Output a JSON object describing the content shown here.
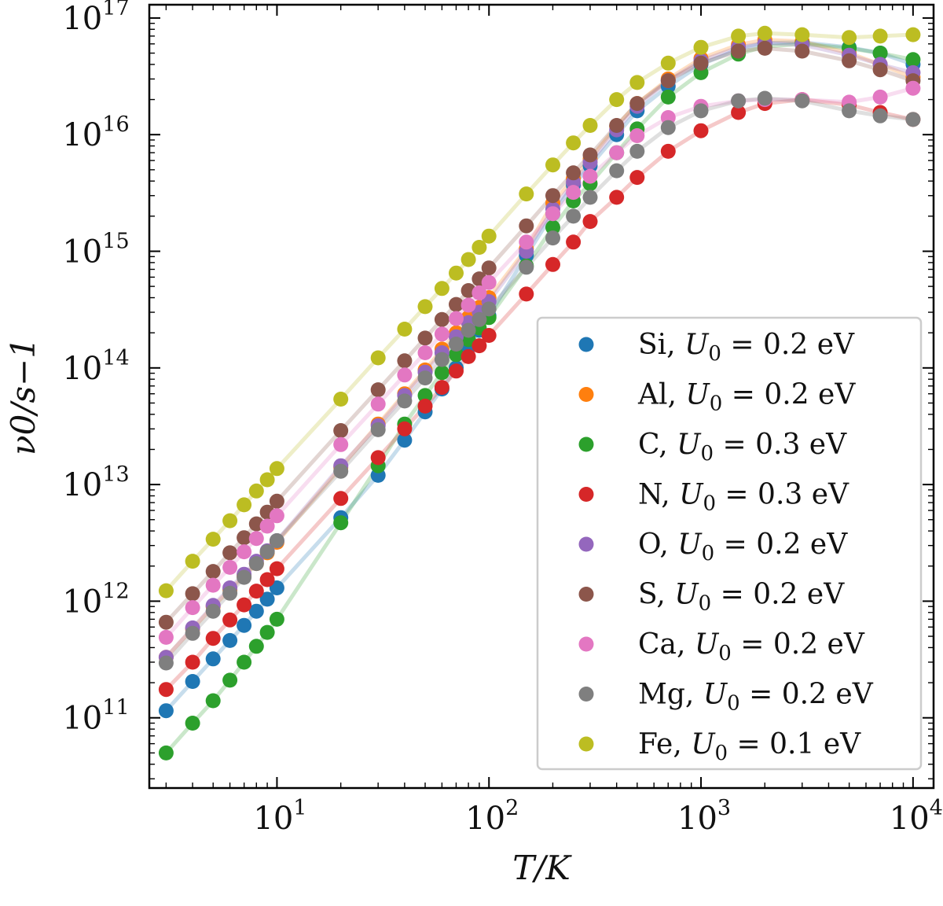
{
  "chart_data": {
    "type": "scatter",
    "title": "",
    "xlabel": "T/K",
    "ylabel": "ν0/s−1",
    "xscale": "log",
    "yscale": "log",
    "xlim": [
      2.5,
      12500
    ],
    "ylim": [
      25000000000.0,
      1.3e+17
    ],
    "grid": false,
    "legend_position": "lower-right",
    "x_ticks": [
      {
        "value": 10,
        "base": "10",
        "exp": "1"
      },
      {
        "value": 100,
        "base": "10",
        "exp": "2"
      },
      {
        "value": 1000,
        "base": "10",
        "exp": "3"
      },
      {
        "value": 10000,
        "base": "10",
        "exp": "4"
      }
    ],
    "y_ticks": [
      {
        "value": 100000000000.0,
        "base": "10",
        "exp": "11"
      },
      {
        "value": 1000000000000.0,
        "base": "10",
        "exp": "12"
      },
      {
        "value": 10000000000000.0,
        "base": "10",
        "exp": "13"
      },
      {
        "value": 100000000000000.0,
        "base": "10",
        "exp": "14"
      },
      {
        "value": 1000000000000000.0,
        "base": "10",
        "exp": "15"
      },
      {
        "value": 1e+16,
        "base": "10",
        "exp": "16"
      },
      {
        "value": 1e+17,
        "base": "10",
        "exp": "17"
      }
    ],
    "series": [
      {
        "name": "Si, U0 = 0.2 eV",
        "element": "Si",
        "u0_text": "0.2 eV",
        "color": "#1f77b4",
        "x": [
          3,
          4,
          5,
          6,
          7,
          8,
          9,
          10,
          20,
          30,
          40,
          50,
          60,
          70,
          80,
          90,
          100,
          150,
          200,
          250,
          300,
          400,
          500,
          700,
          1000,
          1500,
          2000,
          3000,
          5000,
          7000,
          10000
        ],
        "y": [
          115000000000.0,
          205000000000.0,
          320000000000.0,
          460000000000.0,
          620000000000.0,
          820000000000.0,
          1040000000000.0,
          1300000000000.0,
          5200000000000.0,
          12000000000000.0,
          24000000000000.0,
          42000000000000.0,
          66000000000000.0,
          100000000000000.0,
          150000000000000.0,
          210000000000000.0,
          280000000000000.0,
          920000000000000.0,
          2100000000000000.0,
          3700000000000000.0,
          5400000000000000.0,
          1e+16,
          1.6e+16,
          2.6e+16,
          4e+16,
          5.4e+16,
          6.1e+16,
          6.2e+16,
          5.6e+16,
          5e+16,
          4e+16
        ]
      },
      {
        "name": "Al, U0 = 0.2 eV",
        "element": "Al",
        "u0_text": "0.2 eV",
        "color": "#ff7f0e",
        "x": [
          3,
          4,
          5,
          6,
          7,
          8,
          9,
          10,
          20,
          30,
          40,
          50,
          60,
          70,
          80,
          90,
          100,
          150,
          200,
          250,
          300,
          400,
          500,
          700,
          1000,
          1500,
          2000,
          3000,
          5000,
          7000,
          10000
        ],
        "y": [
          330000000000.0,
          580000000000.0,
          900000000000.0,
          1250000000000.0,
          1650000000000.0,
          2100000000000.0,
          2600000000000.0,
          3200000000000.0,
          14000000000000.0,
          33000000000000.0,
          60000000000000.0,
          96000000000000.0,
          145000000000000.0,
          200000000000000.0,
          270000000000000.0,
          330000000000000.0,
          400000000000000.0,
          1050000000000000.0,
          2600000000000000.0,
          4200000000000000.0,
          6200000000000000.0,
          1.18e+16,
          1.85e+16,
          3e+16,
          4.5e+16,
          5.9e+16,
          6.5e+16,
          6.3e+16,
          5e+16,
          4e+16,
          3.1e+16
        ]
      },
      {
        "name": "C, U0 = 0.3 eV",
        "element": "C",
        "u0_text": "0.3 eV",
        "color": "#2ca02c",
        "x": [
          3,
          4,
          5,
          6,
          7,
          8,
          9,
          10,
          20,
          30,
          40,
          50,
          60,
          70,
          80,
          90,
          100,
          150,
          200,
          250,
          300,
          400,
          500,
          700,
          1000,
          1500,
          2000,
          3000,
          5000,
          7000,
          10000
        ],
        "y": [
          50000000000.0,
          90000000000.0,
          140000000000.0,
          210000000000.0,
          300000000000.0,
          410000000000.0,
          540000000000.0,
          700000000000.0,
          4700000000000.0,
          14500000000000.0,
          33000000000000.0,
          58000000000000.0,
          91000000000000.0,
          130000000000000.0,
          175000000000000.0,
          220000000000000.0,
          270000000000000.0,
          750000000000000.0,
          1600000000000000.0,
          2700000000000000.0,
          3800000000000000.0,
          7000000000000000.0,
          1.12e+16,
          2.1e+16,
          3.4e+16,
          4.9e+16,
          5.7e+16,
          6e+16,
          5.5e+16,
          5e+16,
          4.4e+16
        ]
      },
      {
        "name": "N, U0 = 0.3 eV",
        "element": "N",
        "u0_text": "0.3 eV",
        "color": "#d62728",
        "x": [
          3,
          4,
          5,
          6,
          7,
          8,
          9,
          10,
          20,
          30,
          40,
          50,
          60,
          70,
          80,
          90,
          100,
          150,
          200,
          250,
          300,
          400,
          500,
          700,
          1000,
          1500,
          2000,
          3000,
          5000,
          7000,
          10000
        ],
        "y": [
          175000000000.0,
          300000000000.0,
          480000000000.0,
          690000000000.0,
          930000000000.0,
          1220000000000.0,
          1530000000000.0,
          1900000000000.0,
          7600000000000.0,
          17000000000000.0,
          30000000000000.0,
          47000000000000.0,
          68000000000000.0,
          94000000000000.0,
          125000000000000.0,
          155000000000000.0,
          190000000000000.0,
          430000000000000.0,
          770000000000000.0,
          1200000000000000.0,
          1800000000000000.0,
          2900000000000000.0,
          4300000000000000.0,
          7200000000000000.0,
          1.08e+16,
          1.55e+16,
          1.85e+16,
          2e+16,
          1.8e+16,
          1.55e+16,
          1.35e+16
        ]
      },
      {
        "name": "O, U0 = 0.2 eV",
        "element": "O",
        "u0_text": "0.2 eV",
        "color": "#9467bd",
        "x": [
          3,
          4,
          5,
          6,
          7,
          8,
          9,
          10,
          20,
          30,
          40,
          50,
          60,
          70,
          80,
          90,
          100,
          150,
          200,
          250,
          300,
          400,
          500,
          700,
          1000,
          1500,
          2000,
          3000,
          5000,
          7000,
          10000
        ],
        "y": [
          330000000000.0,
          590000000000.0,
          920000000000.0,
          1300000000000.0,
          1700000000000.0,
          2200000000000.0,
          2700000000000.0,
          3300000000000.0,
          14500000000000.0,
          32000000000000.0,
          58000000000000.0,
          92000000000000.0,
          135000000000000.0,
          185000000000000.0,
          245000000000000.0,
          300000000000000.0,
          370000000000000.0,
          1000000000000000.0,
          2300000000000000.0,
          3900000000000000.0,
          5800000000000000.0,
          1.1e+16,
          1.75e+16,
          2.9e+16,
          4.3e+16,
          5.6e+16,
          6.1e+16,
          5.9e+16,
          4.8e+16,
          4e+16,
          3.4e+16
        ]
      },
      {
        "name": "S, U0 = 0.2 eV",
        "element": "S",
        "u0_text": "0.2 eV",
        "color": "#8c564b",
        "x": [
          3,
          4,
          5,
          6,
          7,
          8,
          9,
          10,
          20,
          30,
          40,
          50,
          60,
          70,
          80,
          90,
          100,
          150,
          200,
          250,
          300,
          400,
          500,
          700,
          1000,
          1500,
          2000,
          3000,
          5000,
          7000,
          10000
        ],
        "y": [
          660000000000.0,
          1160000000000.0,
          1800000000000.0,
          2600000000000.0,
          3500000000000.0,
          4600000000000.0,
          5800000000000.0,
          7200000000000.0,
          29000000000000.0,
          65000000000000.0,
          115000000000000.0,
          180000000000000.0,
          260000000000000.0,
          350000000000000.0,
          460000000000000.0,
          580000000000000.0,
          720000000000000.0,
          1650000000000000.0,
          3000000000000000.0,
          4700000000000000.0,
          6700000000000000.0,
          1.2e+16,
          1.85e+16,
          2.9e+16,
          4.1e+16,
          5.2e+16,
          5.5e+16,
          5.2e+16,
          4.3e+16,
          3.6e+16,
          2.9e+16
        ]
      },
      {
        "name": "Ca, U0 = 0.2 eV",
        "element": "Ca",
        "u0_text": "0.2 eV",
        "color": "#e377c2",
        "x": [
          3,
          4,
          5,
          6,
          7,
          8,
          9,
          10,
          20,
          30,
          40,
          50,
          60,
          70,
          80,
          90,
          100,
          150,
          200,
          250,
          300,
          400,
          500,
          700,
          1000,
          1500,
          2000,
          3000,
          5000,
          7000,
          10000
        ],
        "y": [
          490000000000.0,
          880000000000.0,
          1370000000000.0,
          1950000000000.0,
          2650000000000.0,
          3450000000000.0,
          4400000000000.0,
          5400000000000.0,
          22000000000000.0,
          49000000000000.0,
          87000000000000.0,
          135000000000000.0,
          195000000000000.0,
          265000000000000.0,
          345000000000000.0,
          440000000000000.0,
          540000000000000.0,
          1200000000000000.0,
          2100000000000000.0,
          3200000000000000.0,
          4400000000000000.0,
          7000000000000000.0,
          9800000000000000.0,
          1.4e+16,
          1.75e+16,
          1.95e+16,
          2e+16,
          2e+16,
          1.9e+16,
          2.1e+16,
          2.5e+16
        ]
      },
      {
        "name": "Mg, U0 = 0.2 eV",
        "element": "Mg",
        "u0_text": "0.2 eV",
        "color": "#7f7f7f",
        "x": [
          3,
          4,
          5,
          6,
          7,
          8,
          9,
          10,
          20,
          30,
          40,
          50,
          60,
          70,
          80,
          90,
          100,
          150,
          200,
          250,
          300,
          400,
          500,
          700,
          1000,
          1500,
          2000,
          3000,
          5000,
          7000,
          10000
        ],
        "y": [
          295000000000.0,
          530000000000.0,
          820000000000.0,
          1170000000000.0,
          1600000000000.0,
          2100000000000.0,
          2650000000000.0,
          3300000000000.0,
          13000000000000.0,
          29500000000000.0,
          52000000000000.0,
          82000000000000.0,
          118000000000000.0,
          160000000000000.0,
          210000000000000.0,
          260000000000000.0,
          320000000000000.0,
          730000000000000.0,
          1300000000000000.0,
          2000000000000000.0,
          2900000000000000.0,
          4900000000000000.0,
          7200000000000000.0,
          1.15e+16,
          1.6e+16,
          1.95e+16,
          2.05e+16,
          1.95e+16,
          1.6e+16,
          1.45e+16,
          1.35e+16
        ]
      },
      {
        "name": "Fe, U0 = 0.1 eV",
        "element": "Fe",
        "u0_text": "0.1 eV",
        "color": "#bcbd22",
        "x": [
          3,
          4,
          5,
          6,
          7,
          8,
          9,
          10,
          20,
          30,
          40,
          50,
          60,
          70,
          80,
          90,
          100,
          150,
          200,
          250,
          300,
          400,
          500,
          700,
          1000,
          1500,
          2000,
          3000,
          5000,
          7000,
          10000
        ],
        "y": [
          1230000000000.0,
          2200000000000.0,
          3400000000000.0,
          4900000000000.0,
          6700000000000.0,
          8800000000000.0,
          11000000000000.0,
          13700000000000.0,
          54000000000000.0,
          122000000000000.0,
          215000000000000.0,
          335000000000000.0,
          480000000000000.0,
          650000000000000.0,
          850000000000000.0,
          1080000000000000.0,
          1350000000000000.0,
          3100000000000000.0,
          5500000000000000.0,
          8500000000000000.0,
          1.2e+16,
          2e+16,
          2.8e+16,
          4.1e+16,
          5.6e+16,
          7e+16,
          7.4e+16,
          7.2e+16,
          6.8e+16,
          7e+16,
          7.2e+16
        ]
      }
    ]
  }
}
